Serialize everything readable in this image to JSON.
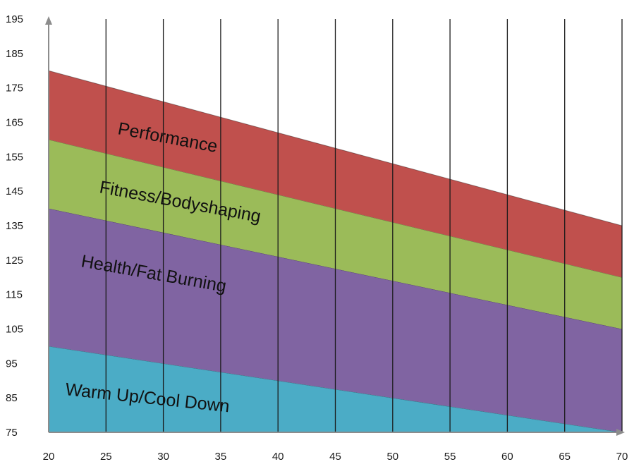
{
  "chart_data": {
    "type": "area",
    "title": "",
    "xlabel": "",
    "ylabel": "",
    "x": [
      20,
      70
    ],
    "xlim": [
      20,
      70
    ],
    "ylim": [
      75,
      195
    ],
    "x_ticks": [
      "20",
      "25",
      "30",
      "35",
      "40",
      "45",
      "50",
      "55",
      "60",
      "65",
      "70"
    ],
    "y_ticks": [
      "75",
      "85",
      "95",
      "105",
      "115",
      "125",
      "135",
      "145",
      "155",
      "165",
      "175",
      "185",
      "195"
    ],
    "grid": "vertical",
    "series": [
      {
        "name": "Warm Up/Cool Down",
        "lower": [
          75,
          75
        ],
        "upper": [
          100,
          75
        ],
        "color": "#4bacc6"
      },
      {
        "name": "Health/Fat Burning",
        "lower": [
          100,
          75
        ],
        "upper": [
          140,
          105
        ],
        "color": "#8064a2"
      },
      {
        "name": "Fitness/Bodyshaping",
        "lower": [
          140,
          105
        ],
        "upper": [
          160,
          120
        ],
        "color": "#9bbb59"
      },
      {
        "name": "Performance",
        "lower": [
          160,
          120
        ],
        "upper": [
          180,
          135
        ],
        "color": "#c0504d"
      }
    ]
  }
}
